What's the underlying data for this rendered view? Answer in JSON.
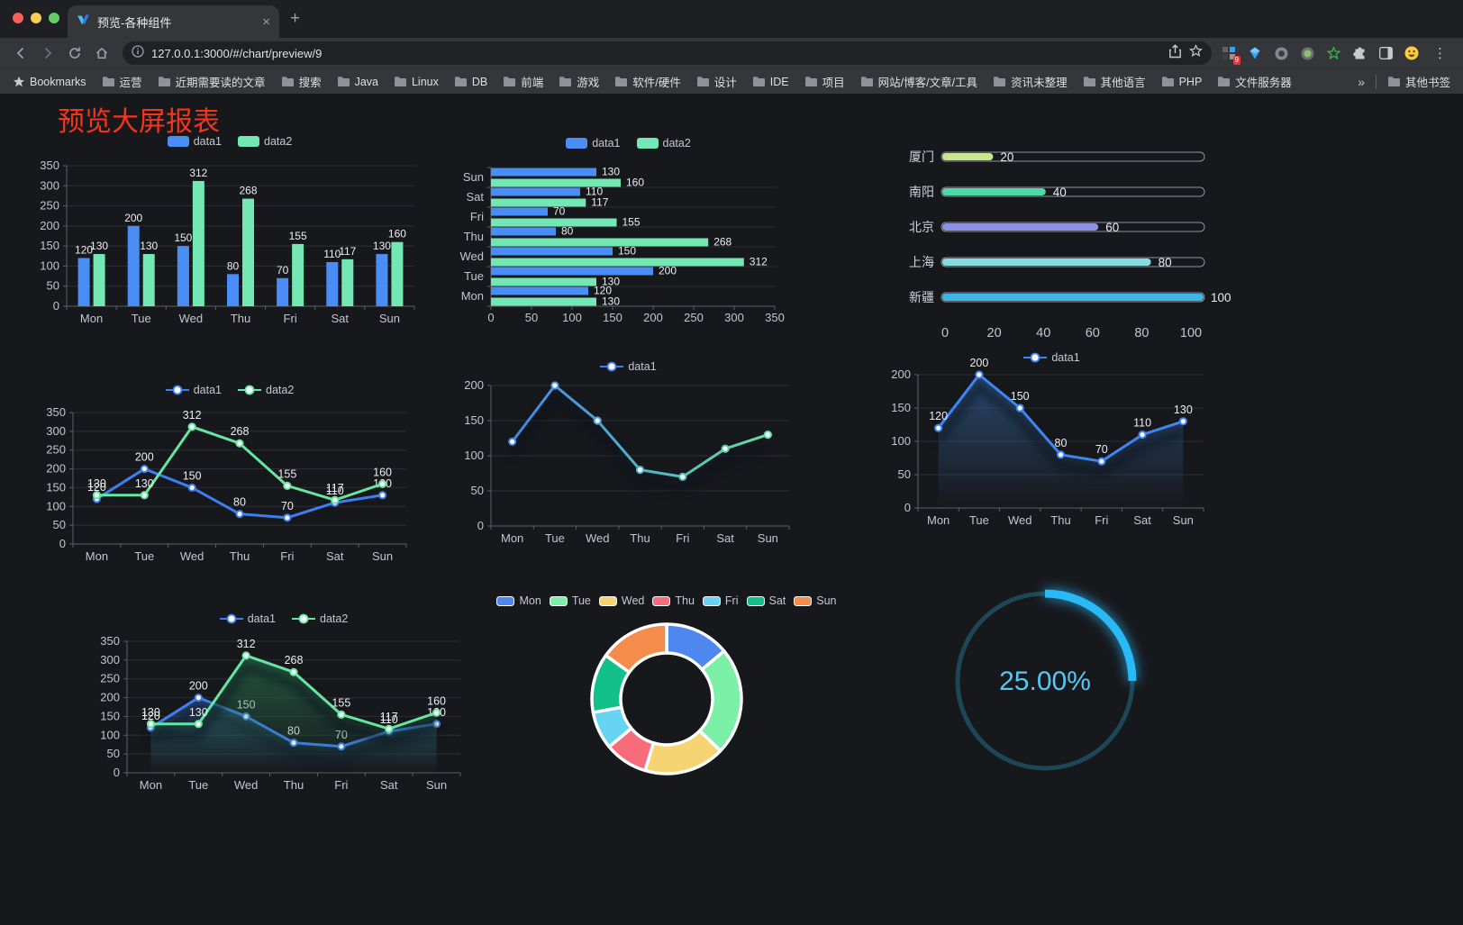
{
  "browser": {
    "tab": {
      "title": "预览-各种组件"
    },
    "new_tab": "+",
    "close_tab": "×",
    "url": "127.0.0.1:3000/#/chart/preview/9",
    "extension_badge": "9",
    "menu_dots": "⋮",
    "bookmarks": {
      "root_label": "Bookmarks",
      "folders": [
        "运营",
        "近期需要读的文章",
        "搜索",
        "Java",
        "Linux",
        "DB",
        "前端",
        "游戏",
        "软件/硬件",
        "设计",
        "IDE",
        "项目",
        "网站/博客/文章/工具",
        "资讯未整理",
        "其他语言",
        "PHP",
        "文件服务器"
      ],
      "overflow": "»",
      "other": "其他书签"
    }
  },
  "page": {
    "title": "预览大屏报表",
    "title_color": "#f5341c"
  },
  "chart_data": [
    {
      "id": "grouped-bar",
      "type": "bar",
      "categories": [
        "Mon",
        "Tue",
        "Wed",
        "Thu",
        "Fri",
        "Sat",
        "Sun"
      ],
      "series": [
        {
          "name": "data1",
          "color": "#4a8ef5",
          "values": [
            120,
            200,
            150,
            80,
            70,
            110,
            130
          ]
        },
        {
          "name": "data2",
          "color": "#73e8b2",
          "values": [
            130,
            130,
            312,
            268,
            155,
            117,
            160
          ]
        }
      ],
      "ylim": [
        0,
        350
      ],
      "ystep": 50,
      "yticks": [
        0,
        50,
        100,
        150,
        200,
        250,
        300,
        350
      ],
      "legend": "chip",
      "value_labels": true,
      "grid": true
    },
    {
      "id": "horizontal-bar",
      "type": "hbar",
      "categories": [
        "Mon",
        "Tue",
        "Wed",
        "Thu",
        "Fri",
        "Sat",
        "Sun"
      ],
      "series": [
        {
          "name": "data1",
          "color": "#4a8ef5",
          "values": [
            120,
            200,
            150,
            80,
            70,
            110,
            130
          ]
        },
        {
          "name": "data2",
          "color": "#73e8b2",
          "values": [
            130,
            130,
            312,
            268,
            155,
            117,
            160
          ]
        }
      ],
      "xlim": [
        0,
        350
      ],
      "xstep": 50,
      "xticks": [
        0,
        50,
        100,
        150,
        200,
        250,
        300,
        350
      ],
      "legend": "chip",
      "value_labels": true,
      "grid": true
    },
    {
      "id": "city-progress",
      "type": "progress",
      "items": [
        {
          "label": "厦门",
          "value": 20,
          "color": "#c9e68d"
        },
        {
          "label": "南阳",
          "value": 40,
          "color": "#4ed9a6"
        },
        {
          "label": "北京",
          "value": 60,
          "color": "#8b90e0"
        },
        {
          "label": "上海",
          "value": 80,
          "color": "#85dde2"
        },
        {
          "label": "新疆",
          "value": 100,
          "color": "#3eb6e6"
        }
      ],
      "xticks": [
        0,
        20,
        40,
        60,
        80,
        100
      ],
      "xlim": [
        0,
        100
      ]
    },
    {
      "id": "line-two-series",
      "type": "line",
      "categories": [
        "Mon",
        "Tue",
        "Wed",
        "Thu",
        "Fri",
        "Sat",
        "Sun"
      ],
      "ylim": [
        0,
        350
      ],
      "ystep": 50,
      "yticks": [
        0,
        50,
        100,
        150,
        200,
        250,
        300,
        350
      ],
      "legend": "marker",
      "series": [
        {
          "name": "data1",
          "color": "#3e7ef0",
          "values": [
            120,
            200,
            150,
            80,
            70,
            110,
            130
          ],
          "labels": true
        },
        {
          "name": "data2",
          "color": "#67e5a1",
          "values": [
            130,
            130,
            312,
            268,
            155,
            117,
            160
          ],
          "labels": true
        }
      ]
    },
    {
      "id": "line-gradient",
      "type": "line",
      "categories": [
        "Mon",
        "Tue",
        "Wed",
        "Thu",
        "Fri",
        "Sat",
        "Sun"
      ],
      "ylim": [
        0,
        200
      ],
      "ystep": 50,
      "yticks": [
        0,
        50,
        100,
        150,
        200
      ],
      "legend": "marker",
      "series": [
        {
          "name": "data1",
          "gradient": [
            "#3e7ef0",
            "#67e5a1"
          ],
          "values": [
            120,
            200,
            150,
            80,
            70,
            110,
            130
          ],
          "labels": false,
          "shadow": true
        }
      ]
    },
    {
      "id": "line-area",
      "type": "line",
      "categories": [
        "Mon",
        "Tue",
        "Wed",
        "Thu",
        "Fri",
        "Sat",
        "Sun"
      ],
      "ylim": [
        0,
        200
      ],
      "ystep": 50,
      "yticks": [
        0,
        50,
        100,
        150,
        200
      ],
      "legend": "marker",
      "series": [
        {
          "name": "data1",
          "color": "#3f86f5",
          "values": [
            120,
            200,
            150,
            80,
            70,
            110,
            130
          ],
          "labels": true,
          "shadow": true,
          "area": [
            "rgba(52,100,160,0.62)",
            "rgba(52,100,160,0)"
          ]
        }
      ]
    },
    {
      "id": "line-area-two",
      "type": "line",
      "categories": [
        "Mon",
        "Tue",
        "Wed",
        "Thu",
        "Fri",
        "Sat",
        "Sun"
      ],
      "ylim": [
        0,
        350
      ],
      "ystep": 50,
      "yticks": [
        0,
        50,
        100,
        150,
        200,
        250,
        300,
        350
      ],
      "legend": "marker",
      "series": [
        {
          "name": "data1",
          "color": "#3e7ef0",
          "values": [
            120,
            200,
            150,
            80,
            70,
            110,
            130
          ],
          "labels": true,
          "shadow": true,
          "area": [
            "rgba(46,92,150,0.6)",
            "rgba(46,92,150,0)"
          ]
        },
        {
          "name": "data2",
          "color": "#67e5a1",
          "values": [
            130,
            130,
            312,
            268,
            155,
            117,
            160
          ],
          "labels": true,
          "shadow": true,
          "area": [
            "rgba(40,120,82,0.65)",
            "rgba(40,120,82,0)"
          ]
        }
      ]
    },
    {
      "id": "donut",
      "type": "donut",
      "categories": [
        "Mon",
        "Tue",
        "Wed",
        "Thu",
        "Fri",
        "Sat",
        "Sun"
      ],
      "values": [
        120,
        200,
        150,
        80,
        70,
        110,
        130
      ],
      "colors": [
        "#4e87ee",
        "#7df0a8",
        "#f6d471",
        "#f66c7b",
        "#66d4f2",
        "#12c189",
        "#f58c4b"
      ],
      "border_color": "#ffffff"
    },
    {
      "id": "gauge",
      "type": "gauge",
      "value": 25,
      "label": "25.00%",
      "color": "#29b9f7",
      "track": "#1d4756",
      "text_color": "#54c8f7"
    }
  ]
}
